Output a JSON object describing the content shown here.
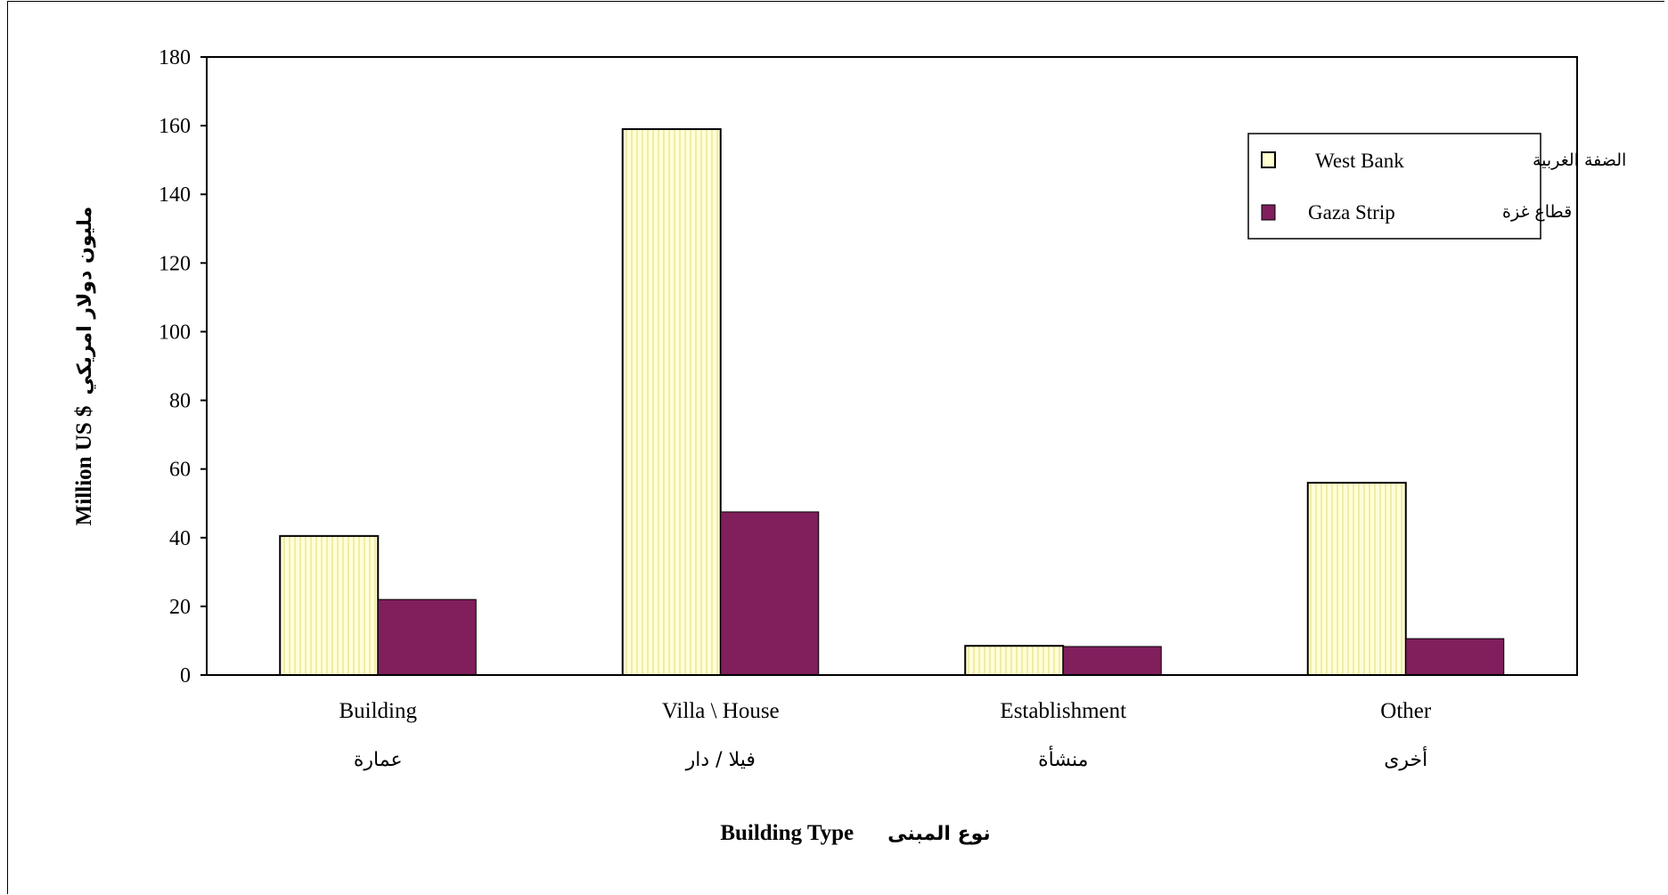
{
  "chart_data": {
    "type": "bar",
    "categories": [
      "Building",
      "Villa \\ House",
      "Establishment",
      "Other"
    ],
    "categories_ar": [
      "عمارة",
      "فيلا / دار",
      "منشأة",
      "أخرى"
    ],
    "series": [
      {
        "name": "West Bank",
        "name_ar": "الضفة الغربية",
        "values": [
          40.5,
          159,
          8.5,
          56
        ],
        "color": "#ffffd0",
        "pattern": "vertical-stripes"
      },
      {
        "name": "Gaza Strip",
        "name_ar": "قطاع غزة",
        "values": [
          22,
          47.5,
          8.3,
          10.6
        ],
        "color": "#801f5c"
      }
    ],
    "xlabel": "Building Type",
    "xlabel_ar": "نوع المبنى",
    "ylabel": "Million US $",
    "ylabel_ar": "مليون دولار امريكي",
    "ylim": [
      0,
      180
    ],
    "yticks": [
      0,
      20,
      40,
      60,
      80,
      100,
      120,
      140,
      160,
      180
    ],
    "grid": false,
    "legend_position": "top-right"
  }
}
